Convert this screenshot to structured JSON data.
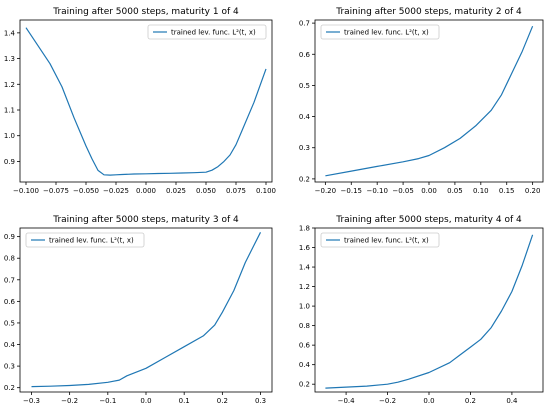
{
  "figure": {
    "background": "#ffffff",
    "line_color": "#1f77b4"
  },
  "chart_data": [
    {
      "type": "line",
      "title": "Training after 5000 steps, maturity 1 of 4",
      "xlabel": "",
      "ylabel": "",
      "grid": false,
      "legend_position": "upper right",
      "xlim": [
        -0.105,
        0.105
      ],
      "ylim": [
        0.82,
        1.45
      ],
      "xticks": [
        -0.1,
        -0.075,
        -0.05,
        -0.025,
        0.0,
        0.025,
        0.05,
        0.075,
        0.1
      ],
      "xtick_labels": [
        "−0.100",
        "−0.075",
        "−0.050",
        "−0.025",
        "0.000",
        "0.025",
        "0.050",
        "0.075",
        "0.100"
      ],
      "yticks": [
        0.9,
        1.0,
        1.1,
        1.2,
        1.3,
        1.4
      ],
      "ytick_labels": [
        "0.9",
        "1.0",
        "1.1",
        "1.2",
        "1.3",
        "1.4"
      ],
      "series": [
        {
          "name": "trained lev. func. L²(t, x)",
          "color": "#1f77b4",
          "x": [
            -0.1,
            -0.09,
            -0.08,
            -0.07,
            -0.06,
            -0.05,
            -0.045,
            -0.04,
            -0.035,
            -0.03,
            -0.025,
            -0.02,
            -0.01,
            0.0,
            0.01,
            0.02,
            0.03,
            0.04,
            0.05,
            0.055,
            0.06,
            0.065,
            0.07,
            0.075,
            0.08,
            0.09,
            0.1
          ],
          "y": [
            1.42,
            1.35,
            1.28,
            1.19,
            1.07,
            0.96,
            0.91,
            0.865,
            0.848,
            0.847,
            0.848,
            0.849,
            0.851,
            0.852,
            0.853,
            0.854,
            0.855,
            0.856,
            0.858,
            0.866,
            0.88,
            0.9,
            0.925,
            0.965,
            1.02,
            1.13,
            1.26
          ]
        }
      ]
    },
    {
      "type": "line",
      "title": "Training after 5000 steps, maturity 2 of 4",
      "xlabel": "",
      "ylabel": "",
      "grid": false,
      "legend_position": "upper left",
      "xlim": [
        -0.22,
        0.22
      ],
      "ylim": [
        0.19,
        0.71
      ],
      "xticks": [
        -0.2,
        -0.15,
        -0.1,
        -0.05,
        0.0,
        0.05,
        0.1,
        0.15,
        0.2
      ],
      "xtick_labels": [
        "−0.20",
        "−0.15",
        "−0.10",
        "−0.05",
        "0.00",
        "0.05",
        "0.10",
        "0.15",
        "0.20"
      ],
      "yticks": [
        0.2,
        0.3,
        0.4,
        0.5,
        0.6,
        0.7
      ],
      "ytick_labels": [
        "0.2",
        "0.3",
        "0.4",
        "0.5",
        "0.6",
        "0.7"
      ],
      "series": [
        {
          "name": "trained lev. func. L²(t, x)",
          "color": "#1f77b4",
          "x": [
            -0.2,
            -0.15,
            -0.1,
            -0.05,
            -0.02,
            0.0,
            0.03,
            0.06,
            0.09,
            0.12,
            0.14,
            0.16,
            0.18,
            0.2
          ],
          "y": [
            0.21,
            0.225,
            0.24,
            0.255,
            0.265,
            0.275,
            0.3,
            0.33,
            0.37,
            0.42,
            0.47,
            0.54,
            0.61,
            0.69
          ]
        }
      ]
    },
    {
      "type": "line",
      "title": "Training after 5000 steps, maturity 3 of 4",
      "xlabel": "",
      "ylabel": "",
      "grid": false,
      "legend_position": "upper left",
      "xlim": [
        -0.33,
        0.33
      ],
      "ylim": [
        0.18,
        0.94
      ],
      "xticks": [
        -0.3,
        -0.2,
        -0.1,
        0.0,
        0.1,
        0.2,
        0.3
      ],
      "xtick_labels": [
        "−0.3",
        "−0.2",
        "−0.1",
        "0.0",
        "0.1",
        "0.2",
        "0.3"
      ],
      "yticks": [
        0.2,
        0.3,
        0.4,
        0.5,
        0.6,
        0.7,
        0.8,
        0.9
      ],
      "ytick_labels": [
        "0.2",
        "0.3",
        "0.4",
        "0.5",
        "0.6",
        "0.7",
        "0.8",
        "0.9"
      ],
      "series": [
        {
          "name": "trained lev. func. L²(t, x)",
          "color": "#1f77b4",
          "x": [
            -0.3,
            -0.25,
            -0.2,
            -0.15,
            -0.1,
            -0.07,
            -0.05,
            0.0,
            0.05,
            0.1,
            0.15,
            0.18,
            0.2,
            0.23,
            0.26,
            0.3
          ],
          "y": [
            0.205,
            0.207,
            0.21,
            0.215,
            0.225,
            0.235,
            0.255,
            0.29,
            0.34,
            0.39,
            0.44,
            0.49,
            0.55,
            0.65,
            0.78,
            0.92
          ]
        }
      ]
    },
    {
      "type": "line",
      "title": "Training after 5000 steps, maturity 4 of 4",
      "xlabel": "",
      "ylabel": "",
      "grid": false,
      "legend_position": "upper left",
      "xlim": [
        -0.55,
        0.55
      ],
      "ylim": [
        0.12,
        1.8
      ],
      "xticks": [
        -0.4,
        -0.2,
        0.0,
        0.2,
        0.4
      ],
      "xtick_labels": [
        "−0.4",
        "−0.2",
        "0.0",
        "0.2",
        "0.4"
      ],
      "yticks": [
        0.2,
        0.4,
        0.6,
        0.8,
        1.0,
        1.2,
        1.4,
        1.6,
        1.8
      ],
      "ytick_labels": [
        "0.2",
        "0.4",
        "0.6",
        "0.8",
        "1.0",
        "1.2",
        "1.4",
        "1.6",
        "1.8"
      ],
      "series": [
        {
          "name": "trained lev. func. L²(t, x)",
          "color": "#1f77b4",
          "x": [
            -0.5,
            -0.4,
            -0.3,
            -0.2,
            -0.15,
            -0.1,
            0.0,
            0.1,
            0.15,
            0.2,
            0.25,
            0.3,
            0.35,
            0.4,
            0.45,
            0.5
          ],
          "y": [
            0.16,
            0.17,
            0.18,
            0.2,
            0.22,
            0.25,
            0.32,
            0.42,
            0.5,
            0.58,
            0.66,
            0.78,
            0.95,
            1.15,
            1.42,
            1.73
          ]
        }
      ]
    }
  ]
}
